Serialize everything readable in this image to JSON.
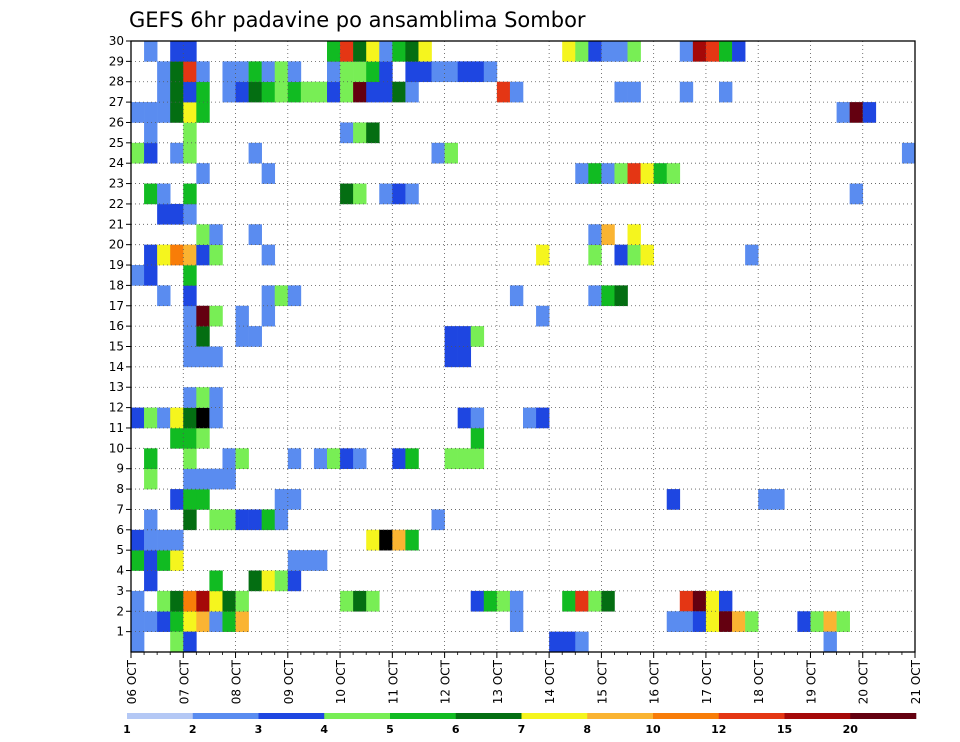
{
  "chart_data": {
    "type": "heatmap",
    "title": "GEFS 6hr padavine po ansamblima Sombor",
    "x_ticks": [
      "06 OCT",
      "07 OCT",
      "08 OCT",
      "09 OCT",
      "10 OCT",
      "11 OCT",
      "12 OCT",
      "13 OCT",
      "14 OCT",
      "15 OCT",
      "16 OCT",
      "17 OCT",
      "18 OCT",
      "19 OCT",
      "20 OCT",
      "21 OCT"
    ],
    "y_ticks": [
      "1",
      "2",
      "3",
      "4",
      "5",
      "6",
      "7",
      "8",
      "9",
      "10",
      "11",
      "12",
      "13",
      "14",
      "15",
      "16",
      "17",
      "18",
      "19",
      "20",
      "21",
      "22",
      "23",
      "24",
      "25",
      "26",
      "27",
      "28",
      "29",
      "30"
    ],
    "y_range": [
      0,
      30
    ],
    "x_range_steps": [
      0,
      60
    ],
    "steps_per_day": 4,
    "grid": "dotted",
    "colorbar": {
      "position": "bottom",
      "labels": [
        "1",
        "2",
        "3",
        "4",
        "5",
        "6",
        "7",
        "8",
        "10",
        "12",
        "15",
        "20"
      ],
      "colors": [
        "#b4c8f5",
        "#5a8cf0",
        "#1e46e1",
        "#78ee55",
        "#11bb22",
        "#046e12",
        "#f5f51e",
        "#fab432",
        "#f87d08",
        "#e43614",
        "#a50808",
        "#640010"
      ]
    },
    "cells": [
      [
        0,
        1,
        1
      ],
      [
        0,
        2,
        1
      ],
      [
        1,
        1,
        1
      ],
      [
        2,
        1,
        2
      ],
      [
        2,
        2,
        3
      ],
      [
        3,
        1,
        4
      ],
      [
        3,
        2,
        5
      ],
      [
        4,
        1,
        6
      ],
      [
        4,
        2,
        8
      ],
      [
        5,
        1,
        7
      ],
      [
        5,
        2,
        10
      ],
      [
        6,
        1,
        1
      ],
      [
        6,
        2,
        6
      ],
      [
        6,
        3,
        4
      ],
      [
        7,
        1,
        4
      ],
      [
        7,
        2,
        5
      ],
      [
        8,
        1,
        7
      ],
      [
        8,
        2,
        3
      ],
      [
        26,
        2,
        2
      ],
      [
        27,
        2,
        4
      ],
      [
        28,
        2,
        3
      ],
      [
        29,
        2,
        1
      ],
      [
        29,
        1,
        1
      ],
      [
        16,
        2,
        3
      ],
      [
        17,
        2,
        5
      ],
      [
        18,
        2,
        3
      ],
      [
        33,
        2,
        4
      ],
      [
        34,
        2,
        9
      ],
      [
        35,
        2,
        3
      ],
      [
        36,
        2,
        5
      ],
      [
        42,
        2,
        9
      ],
      [
        43,
        2,
        11
      ],
      [
        44,
        2,
        6
      ],
      [
        45,
        2,
        2
      ],
      [
        41,
        1,
        1
      ],
      [
        42,
        1,
        1
      ],
      [
        43,
        1,
        2
      ],
      [
        44,
        1,
        6
      ],
      [
        45,
        1,
        11
      ],
      [
        46,
        1,
        7
      ],
      [
        47,
        1,
        3
      ],
      [
        51,
        1,
        2
      ],
      [
        52,
        1,
        3
      ],
      [
        53,
        1,
        7
      ],
      [
        54,
        1,
        3
      ],
      [
        1,
        3,
        2
      ],
      [
        9,
        3,
        5
      ],
      [
        10,
        3,
        6
      ],
      [
        11,
        3,
        3
      ],
      [
        12,
        3,
        2
      ],
      [
        0,
        4,
        4
      ],
      [
        1,
        4,
        2
      ],
      [
        2,
        4,
        4
      ],
      [
        3,
        4,
        6
      ],
      [
        12,
        4,
        1
      ],
      [
        13,
        4,
        1
      ],
      [
        14,
        4,
        1
      ],
      [
        0,
        5,
        2
      ],
      [
        1,
        5,
        1
      ],
      [
        2,
        5,
        1
      ],
      [
        3,
        5,
        1
      ],
      [
        18,
        5,
        6
      ],
      [
        19,
        5,
        12
      ],
      [
        20,
        5,
        7
      ],
      [
        21,
        5,
        4
      ],
      [
        1,
        6,
        1
      ],
      [
        4,
        6,
        5
      ],
      [
        6,
        6,
        3
      ],
      [
        7,
        6,
        3
      ],
      [
        8,
        6,
        2
      ],
      [
        9,
        6,
        2
      ],
      [
        10,
        6,
        4
      ],
      [
        11,
        6,
        1
      ],
      [
        23,
        6,
        1
      ],
      [
        3,
        7,
        2
      ],
      [
        4,
        7,
        4
      ],
      [
        5,
        7,
        4
      ],
      [
        11,
        7,
        1
      ],
      [
        12,
        7,
        1
      ],
      [
        41,
        7,
        2
      ],
      [
        48,
        7,
        1
      ],
      [
        49,
        7,
        1
      ],
      [
        1,
        8,
        3
      ],
      [
        4,
        8,
        1
      ],
      [
        5,
        8,
        1
      ],
      [
        6,
        8,
        1
      ],
      [
        7,
        8,
        1
      ],
      [
        1,
        9,
        4
      ],
      [
        4,
        9,
        3
      ],
      [
        7,
        9,
        1
      ],
      [
        8,
        9,
        3
      ],
      [
        12,
        9,
        1
      ],
      [
        14,
        9,
        1
      ],
      [
        15,
        9,
        3
      ],
      [
        16,
        9,
        2
      ],
      [
        17,
        9,
        1
      ],
      [
        20,
        9,
        2
      ],
      [
        21,
        9,
        4
      ],
      [
        24,
        9,
        3
      ],
      [
        25,
        9,
        3
      ],
      [
        26,
        9,
        3
      ],
      [
        3,
        10,
        4
      ],
      [
        4,
        10,
        4
      ],
      [
        5,
        10,
        3
      ],
      [
        26,
        10,
        4
      ],
      [
        0,
        11,
        2
      ],
      [
        1,
        11,
        3
      ],
      [
        2,
        11,
        1
      ],
      [
        3,
        11,
        6
      ],
      [
        4,
        11,
        5
      ],
      [
        5,
        11,
        12
      ],
      [
        6,
        11,
        1
      ],
      [
        25,
        11,
        2
      ],
      [
        26,
        11,
        1
      ],
      [
        30,
        11,
        1
      ],
      [
        31,
        11,
        2
      ],
      [
        4,
        12,
        1
      ],
      [
        5,
        12,
        3
      ],
      [
        6,
        12,
        1
      ],
      [
        4,
        15,
        1
      ],
      [
        5,
        15,
        5
      ],
      [
        4,
        14,
        1
      ],
      [
        5,
        14,
        1
      ],
      [
        6,
        14,
        1
      ],
      [
        24,
        15,
        2
      ],
      [
        25,
        15,
        2
      ],
      [
        26,
        15,
        3
      ],
      [
        24,
        14,
        2
      ],
      [
        25,
        14,
        2
      ],
      [
        8,
        15,
        1
      ],
      [
        9,
        15,
        1
      ],
      [
        4,
        16,
        1
      ],
      [
        5,
        16,
        11
      ],
      [
        6,
        16,
        3
      ],
      [
        8,
        16,
        1
      ],
      [
        10,
        16,
        1
      ],
      [
        31,
        16,
        1
      ],
      [
        2,
        17,
        1
      ],
      [
        4,
        17,
        2
      ],
      [
        10,
        17,
        1
      ],
      [
        11,
        17,
        3
      ],
      [
        12,
        17,
        1
      ],
      [
        29,
        17,
        1
      ],
      [
        35,
        17,
        1
      ],
      [
        36,
        17,
        4
      ],
      [
        37,
        17,
        5
      ],
      [
        0,
        18,
        1
      ],
      [
        1,
        18,
        2
      ],
      [
        4,
        18,
        4
      ],
      [
        1,
        19,
        2
      ],
      [
        2,
        19,
        6
      ],
      [
        3,
        19,
        8
      ],
      [
        4,
        19,
        7
      ],
      [
        5,
        19,
        2
      ],
      [
        6,
        19,
        3
      ],
      [
        10,
        19,
        1
      ],
      [
        31,
        19,
        6
      ],
      [
        35,
        19,
        3
      ],
      [
        37,
        19,
        2
      ],
      [
        38,
        19,
        3
      ],
      [
        39,
        19,
        6
      ],
      [
        47,
        19,
        1
      ],
      [
        5,
        20,
        3
      ],
      [
        6,
        20,
        1
      ],
      [
        9,
        20,
        1
      ],
      [
        35,
        20,
        1
      ],
      [
        36,
        20,
        7
      ],
      [
        38,
        20,
        6
      ],
      [
        2,
        21,
        2
      ],
      [
        3,
        21,
        2
      ],
      [
        4,
        21,
        1
      ],
      [
        1,
        22,
        4
      ],
      [
        2,
        22,
        1
      ],
      [
        4,
        22,
        4
      ],
      [
        16,
        22,
        5
      ],
      [
        17,
        22,
        3
      ],
      [
        19,
        22,
        1
      ],
      [
        20,
        22,
        2
      ],
      [
        21,
        22,
        1
      ],
      [
        55,
        22,
        1
      ],
      [
        5,
        23,
        1
      ],
      [
        10,
        23,
        1
      ],
      [
        34,
        23,
        1
      ],
      [
        35,
        23,
        4
      ],
      [
        36,
        23,
        1
      ],
      [
        37,
        23,
        3
      ],
      [
        38,
        23,
        9
      ],
      [
        39,
        23,
        6
      ],
      [
        40,
        23,
        4
      ],
      [
        41,
        23,
        3
      ],
      [
        0,
        24,
        3
      ],
      [
        1,
        24,
        2
      ],
      [
        3,
        24,
        1
      ],
      [
        4,
        24,
        3
      ],
      [
        9,
        24,
        1
      ],
      [
        23,
        24,
        1
      ],
      [
        24,
        24,
        3
      ],
      [
        59,
        24,
        1
      ],
      [
        1,
        25,
        1
      ],
      [
        4,
        25,
        3
      ],
      [
        16,
        25,
        1
      ],
      [
        17,
        25,
        3
      ],
      [
        18,
        25,
        5
      ],
      [
        0,
        26,
        1
      ],
      [
        1,
        26,
        1
      ],
      [
        2,
        26,
        1
      ],
      [
        3,
        26,
        5
      ],
      [
        4,
        26,
        6
      ],
      [
        5,
        26,
        4
      ],
      [
        54,
        26,
        1
      ],
      [
        55,
        26,
        11
      ],
      [
        56,
        26,
        2
      ],
      [
        2,
        27,
        1
      ],
      [
        3,
        27,
        5
      ],
      [
        4,
        27,
        2
      ],
      [
        5,
        27,
        4
      ],
      [
        7,
        27,
        1
      ],
      [
        8,
        27,
        2
      ],
      [
        9,
        27,
        5
      ],
      [
        10,
        27,
        4
      ],
      [
        11,
        27,
        3
      ],
      [
        12,
        27,
        4
      ],
      [
        13,
        27,
        3
      ],
      [
        14,
        27,
        3
      ],
      [
        15,
        27,
        2
      ],
      [
        16,
        27,
        3
      ],
      [
        17,
        27,
        11
      ],
      [
        18,
        27,
        2
      ],
      [
        19,
        27,
        2
      ],
      [
        20,
        27,
        5
      ],
      [
        21,
        27,
        1
      ],
      [
        28,
        27,
        9
      ],
      [
        29,
        27,
        1
      ],
      [
        37,
        27,
        1
      ],
      [
        38,
        27,
        1
      ],
      [
        42,
        27,
        1
      ],
      [
        45,
        27,
        1
      ],
      [
        2,
        28,
        1
      ],
      [
        3,
        28,
        5
      ],
      [
        4,
        28,
        9
      ],
      [
        5,
        28,
        1
      ],
      [
        7,
        28,
        1
      ],
      [
        8,
        28,
        1
      ],
      [
        9,
        28,
        4
      ],
      [
        10,
        28,
        1
      ],
      [
        11,
        28,
        3
      ],
      [
        12,
        28,
        1
      ],
      [
        15,
        28,
        1
      ],
      [
        16,
        28,
        3
      ],
      [
        17,
        28,
        3
      ],
      [
        18,
        28,
        4
      ],
      [
        19,
        28,
        2
      ],
      [
        21,
        28,
        2
      ],
      [
        22,
        28,
        2
      ],
      [
        23,
        28,
        1
      ],
      [
        24,
        28,
        1
      ],
      [
        25,
        28,
        2
      ],
      [
        26,
        28,
        2
      ],
      [
        27,
        28,
        1
      ],
      [
        1,
        29,
        1
      ],
      [
        3,
        29,
        2
      ],
      [
        4,
        29,
        2
      ],
      [
        15,
        29,
        4
      ],
      [
        16,
        29,
        9
      ],
      [
        17,
        29,
        5
      ],
      [
        18,
        29,
        6
      ],
      [
        19,
        29,
        1
      ],
      [
        20,
        29,
        4
      ],
      [
        21,
        29,
        5
      ],
      [
        22,
        29,
        6
      ],
      [
        33,
        29,
        6
      ],
      [
        34,
        29,
        3
      ],
      [
        35,
        29,
        2
      ],
      [
        36,
        29,
        1
      ],
      [
        37,
        29,
        1
      ],
      [
        38,
        29,
        3
      ],
      [
        42,
        29,
        1
      ],
      [
        43,
        29,
        10
      ],
      [
        44,
        29,
        9
      ],
      [
        45,
        29,
        4
      ],
      [
        46,
        29,
        2
      ],
      [
        0,
        0,
        1
      ],
      [
        3,
        0,
        3
      ],
      [
        4,
        0,
        2
      ],
      [
        32,
        0,
        2
      ],
      [
        33,
        0,
        2
      ],
      [
        34,
        0,
        1
      ],
      [
        53,
        0,
        1
      ]
    ]
  }
}
